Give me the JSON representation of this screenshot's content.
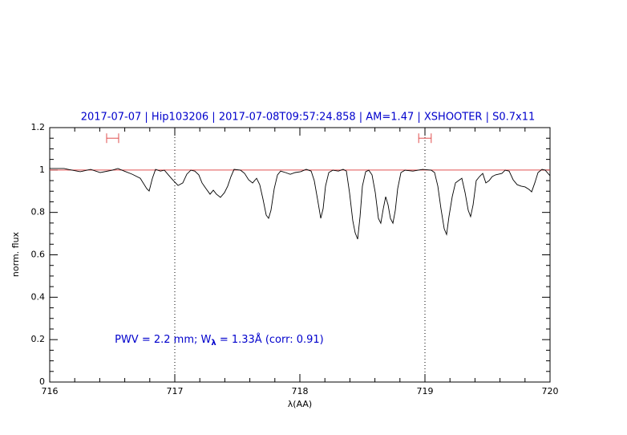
{
  "chart_data": {
    "type": "line",
    "title": "2017-07-07 | Hip103206 | 2017-07-08T09:57:24.858 | AM=1.47 | XSHOOTER | S0.7x11",
    "title_color": "#0000cc",
    "xlabel": "λ(AA)",
    "ylabel": "norm. flux",
    "annotation": {
      "parts": [
        "PWV = 2.2 mm; W",
        "λ",
        " = 1.33Å (corr: 0.91)"
      ],
      "x": 716.52,
      "y": 0.2,
      "color": "#0000cc"
    },
    "xlim": [
      716,
      720
    ],
    "xticks": [
      716,
      717,
      718,
      719,
      720
    ],
    "xminorticks": [
      716.2,
      716.4,
      716.6,
      716.8,
      717.2,
      717.4,
      717.6,
      717.8,
      718.2,
      718.4,
      718.6,
      718.8,
      719.2,
      719.4,
      719.6,
      719.8
    ],
    "ylim": [
      0,
      1.2
    ],
    "yticks": [
      0,
      0.2,
      0.4,
      0.6,
      0.8,
      1,
      1.2
    ],
    "yminorticks": [
      0.05,
      0.1,
      0.15,
      0.25,
      0.3,
      0.35,
      0.45,
      0.5,
      0.55,
      0.65,
      0.7,
      0.75,
      0.85,
      0.9,
      0.95,
      1.05,
      1.1,
      1.15
    ],
    "hline": {
      "y": 1,
      "color": "#e05050"
    },
    "vlines": [
      717,
      719
    ],
    "ranges": [
      {
        "x": [
          716.455,
          716.551
        ],
        "y": 1.15
      },
      {
        "x": [
          718.95,
          719.05
        ],
        "y": 1.15
      }
    ],
    "range_color": "#e05050",
    "series": [
      {
        "color": "#000000",
        "x": [
          716.0,
          716.115,
          716.147,
          716.244,
          716.327,
          716.404,
          716.5,
          716.545,
          716.596,
          716.66,
          716.724,
          716.776,
          716.795,
          716.821,
          716.846,
          716.885,
          716.917,
          716.949,
          716.981,
          717.026,
          717.064,
          717.096,
          717.128,
          717.16,
          717.192,
          717.218,
          717.25,
          717.282,
          717.308,
          717.333,
          717.365,
          717.397,
          717.423,
          717.449,
          717.474,
          717.526,
          717.558,
          717.59,
          717.622,
          717.654,
          717.679,
          717.705,
          717.731,
          717.75,
          717.769,
          717.795,
          717.821,
          717.846,
          717.885,
          717.923,
          717.962,
          718.006,
          718.051,
          718.09,
          718.115,
          718.141,
          718.167,
          718.186,
          718.205,
          718.231,
          718.263,
          718.308,
          718.346,
          718.372,
          718.397,
          718.423,
          718.442,
          718.462,
          718.481,
          718.5,
          718.526,
          718.551,
          718.577,
          718.603,
          718.628,
          718.647,
          718.667,
          718.686,
          718.705,
          718.724,
          718.744,
          718.763,
          718.782,
          718.808,
          718.84,
          718.904,
          718.981,
          719.051,
          719.077,
          719.103,
          719.128,
          719.154,
          719.173,
          719.192,
          719.218,
          719.244,
          719.269,
          719.295,
          719.321,
          719.346,
          719.365,
          719.385,
          719.41,
          719.436,
          719.462,
          719.487,
          719.513,
          719.538,
          719.564,
          719.615,
          719.641,
          719.673,
          719.705,
          719.737,
          719.769,
          719.801,
          719.833,
          719.853,
          719.878,
          719.904,
          719.936,
          719.962,
          720.0
        ],
        "values": [
          1.007,
          1.007,
          1.003,
          0.992,
          1.003,
          0.988,
          0.999,
          1.007,
          0.995,
          0.98,
          0.961,
          0.912,
          0.901,
          0.961,
          1.003,
          0.995,
          0.999,
          0.977,
          0.955,
          0.927,
          0.939,
          0.98,
          0.999,
          0.995,
          0.977,
          0.939,
          0.912,
          0.886,
          0.905,
          0.886,
          0.871,
          0.893,
          0.924,
          0.969,
          1.003,
          0.999,
          0.984,
          0.954,
          0.939,
          0.961,
          0.931,
          0.863,
          0.787,
          0.772,
          0.81,
          0.912,
          0.977,
          0.995,
          0.988,
          0.98,
          0.988,
          0.992,
          1.003,
          0.995,
          0.95,
          0.863,
          0.772,
          0.818,
          0.924,
          0.988,
          0.999,
          0.995,
          1.003,
          0.995,
          0.893,
          0.761,
          0.704,
          0.674,
          0.78,
          0.924,
          0.992,
          0.999,
          0.977,
          0.893,
          0.772,
          0.749,
          0.818,
          0.874,
          0.836,
          0.772,
          0.749,
          0.81,
          0.912,
          0.988,
          0.999,
          0.995,
          1.003,
          0.999,
          0.988,
          0.924,
          0.818,
          0.723,
          0.696,
          0.78,
          0.874,
          0.939,
          0.95,
          0.961,
          0.893,
          0.81,
          0.78,
          0.836,
          0.95,
          0.969,
          0.984,
          0.939,
          0.95,
          0.969,
          0.977,
          0.984,
          0.999,
          0.995,
          0.954,
          0.931,
          0.924,
          0.92,
          0.908,
          0.897,
          0.939,
          0.988,
          1.003,
          0.999,
          0.973
        ]
      }
    ]
  }
}
